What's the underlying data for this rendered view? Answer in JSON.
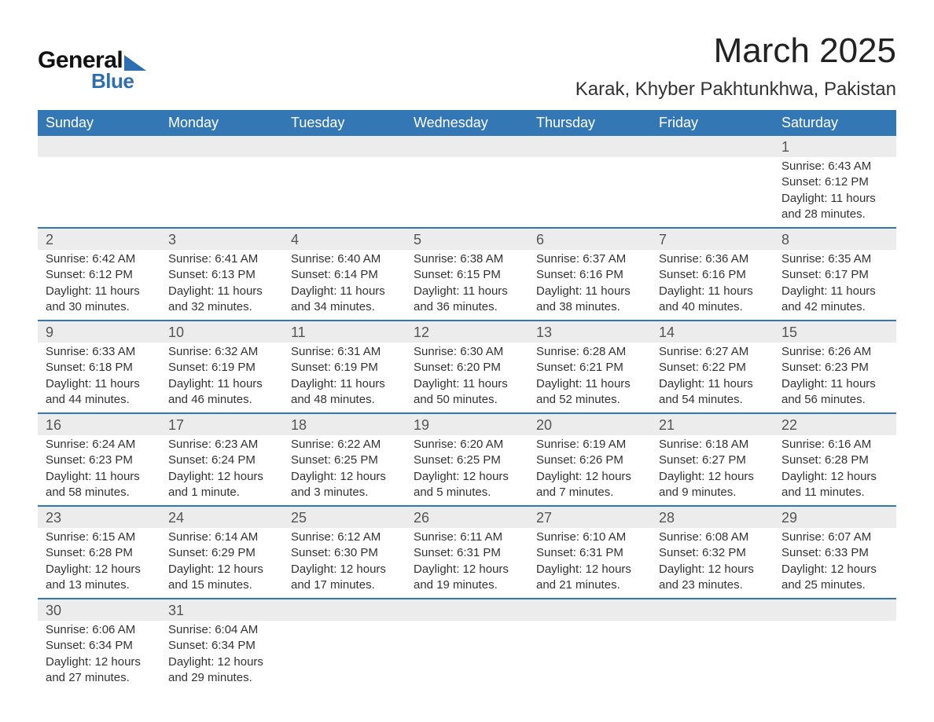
{
  "logo": {
    "word1": "General",
    "word2": "Blue"
  },
  "title": "March 2025",
  "location": "Karak, Khyber Pakhtunkhwa, Pakistan",
  "header_bg": "#3477b5",
  "header_fg": "#ffffff",
  "daynum_bg": "#ececec",
  "divider_color": "#3477b5",
  "day_names": [
    "Sunday",
    "Monday",
    "Tuesday",
    "Wednesday",
    "Thursday",
    "Friday",
    "Saturday"
  ],
  "weeks": [
    [
      null,
      null,
      null,
      null,
      null,
      null,
      {
        "n": "1",
        "sunrise": "Sunrise: 6:43 AM",
        "sunset": "Sunset: 6:12 PM",
        "d1": "Daylight: 11 hours",
        "d2": "and 28 minutes."
      }
    ],
    [
      {
        "n": "2",
        "sunrise": "Sunrise: 6:42 AM",
        "sunset": "Sunset: 6:12 PM",
        "d1": "Daylight: 11 hours",
        "d2": "and 30 minutes."
      },
      {
        "n": "3",
        "sunrise": "Sunrise: 6:41 AM",
        "sunset": "Sunset: 6:13 PM",
        "d1": "Daylight: 11 hours",
        "d2": "and 32 minutes."
      },
      {
        "n": "4",
        "sunrise": "Sunrise: 6:40 AM",
        "sunset": "Sunset: 6:14 PM",
        "d1": "Daylight: 11 hours",
        "d2": "and 34 minutes."
      },
      {
        "n": "5",
        "sunrise": "Sunrise: 6:38 AM",
        "sunset": "Sunset: 6:15 PM",
        "d1": "Daylight: 11 hours",
        "d2": "and 36 minutes."
      },
      {
        "n": "6",
        "sunrise": "Sunrise: 6:37 AM",
        "sunset": "Sunset: 6:16 PM",
        "d1": "Daylight: 11 hours",
        "d2": "and 38 minutes."
      },
      {
        "n": "7",
        "sunrise": "Sunrise: 6:36 AM",
        "sunset": "Sunset: 6:16 PM",
        "d1": "Daylight: 11 hours",
        "d2": "and 40 minutes."
      },
      {
        "n": "8",
        "sunrise": "Sunrise: 6:35 AM",
        "sunset": "Sunset: 6:17 PM",
        "d1": "Daylight: 11 hours",
        "d2": "and 42 minutes."
      }
    ],
    [
      {
        "n": "9",
        "sunrise": "Sunrise: 6:33 AM",
        "sunset": "Sunset: 6:18 PM",
        "d1": "Daylight: 11 hours",
        "d2": "and 44 minutes."
      },
      {
        "n": "10",
        "sunrise": "Sunrise: 6:32 AM",
        "sunset": "Sunset: 6:19 PM",
        "d1": "Daylight: 11 hours",
        "d2": "and 46 minutes."
      },
      {
        "n": "11",
        "sunrise": "Sunrise: 6:31 AM",
        "sunset": "Sunset: 6:19 PM",
        "d1": "Daylight: 11 hours",
        "d2": "and 48 minutes."
      },
      {
        "n": "12",
        "sunrise": "Sunrise: 6:30 AM",
        "sunset": "Sunset: 6:20 PM",
        "d1": "Daylight: 11 hours",
        "d2": "and 50 minutes."
      },
      {
        "n": "13",
        "sunrise": "Sunrise: 6:28 AM",
        "sunset": "Sunset: 6:21 PM",
        "d1": "Daylight: 11 hours",
        "d2": "and 52 minutes."
      },
      {
        "n": "14",
        "sunrise": "Sunrise: 6:27 AM",
        "sunset": "Sunset: 6:22 PM",
        "d1": "Daylight: 11 hours",
        "d2": "and 54 minutes."
      },
      {
        "n": "15",
        "sunrise": "Sunrise: 6:26 AM",
        "sunset": "Sunset: 6:23 PM",
        "d1": "Daylight: 11 hours",
        "d2": "and 56 minutes."
      }
    ],
    [
      {
        "n": "16",
        "sunrise": "Sunrise: 6:24 AM",
        "sunset": "Sunset: 6:23 PM",
        "d1": "Daylight: 11 hours",
        "d2": "and 58 minutes."
      },
      {
        "n": "17",
        "sunrise": "Sunrise: 6:23 AM",
        "sunset": "Sunset: 6:24 PM",
        "d1": "Daylight: 12 hours",
        "d2": "and 1 minute."
      },
      {
        "n": "18",
        "sunrise": "Sunrise: 6:22 AM",
        "sunset": "Sunset: 6:25 PM",
        "d1": "Daylight: 12 hours",
        "d2": "and 3 minutes."
      },
      {
        "n": "19",
        "sunrise": "Sunrise: 6:20 AM",
        "sunset": "Sunset: 6:25 PM",
        "d1": "Daylight: 12 hours",
        "d2": "and 5 minutes."
      },
      {
        "n": "20",
        "sunrise": "Sunrise: 6:19 AM",
        "sunset": "Sunset: 6:26 PM",
        "d1": "Daylight: 12 hours",
        "d2": "and 7 minutes."
      },
      {
        "n": "21",
        "sunrise": "Sunrise: 6:18 AM",
        "sunset": "Sunset: 6:27 PM",
        "d1": "Daylight: 12 hours",
        "d2": "and 9 minutes."
      },
      {
        "n": "22",
        "sunrise": "Sunrise: 6:16 AM",
        "sunset": "Sunset: 6:28 PM",
        "d1": "Daylight: 12 hours",
        "d2": "and 11 minutes."
      }
    ],
    [
      {
        "n": "23",
        "sunrise": "Sunrise: 6:15 AM",
        "sunset": "Sunset: 6:28 PM",
        "d1": "Daylight: 12 hours",
        "d2": "and 13 minutes."
      },
      {
        "n": "24",
        "sunrise": "Sunrise: 6:14 AM",
        "sunset": "Sunset: 6:29 PM",
        "d1": "Daylight: 12 hours",
        "d2": "and 15 minutes."
      },
      {
        "n": "25",
        "sunrise": "Sunrise: 6:12 AM",
        "sunset": "Sunset: 6:30 PM",
        "d1": "Daylight: 12 hours",
        "d2": "and 17 minutes."
      },
      {
        "n": "26",
        "sunrise": "Sunrise: 6:11 AM",
        "sunset": "Sunset: 6:31 PM",
        "d1": "Daylight: 12 hours",
        "d2": "and 19 minutes."
      },
      {
        "n": "27",
        "sunrise": "Sunrise: 6:10 AM",
        "sunset": "Sunset: 6:31 PM",
        "d1": "Daylight: 12 hours",
        "d2": "and 21 minutes."
      },
      {
        "n": "28",
        "sunrise": "Sunrise: 6:08 AM",
        "sunset": "Sunset: 6:32 PM",
        "d1": "Daylight: 12 hours",
        "d2": "and 23 minutes."
      },
      {
        "n": "29",
        "sunrise": "Sunrise: 6:07 AM",
        "sunset": "Sunset: 6:33 PM",
        "d1": "Daylight: 12 hours",
        "d2": "and 25 minutes."
      }
    ],
    [
      {
        "n": "30",
        "sunrise": "Sunrise: 6:06 AM",
        "sunset": "Sunset: 6:34 PM",
        "d1": "Daylight: 12 hours",
        "d2": "and 27 minutes."
      },
      {
        "n": "31",
        "sunrise": "Sunrise: 6:04 AM",
        "sunset": "Sunset: 6:34 PM",
        "d1": "Daylight: 12 hours",
        "d2": "and 29 minutes."
      },
      null,
      null,
      null,
      null,
      null
    ]
  ]
}
